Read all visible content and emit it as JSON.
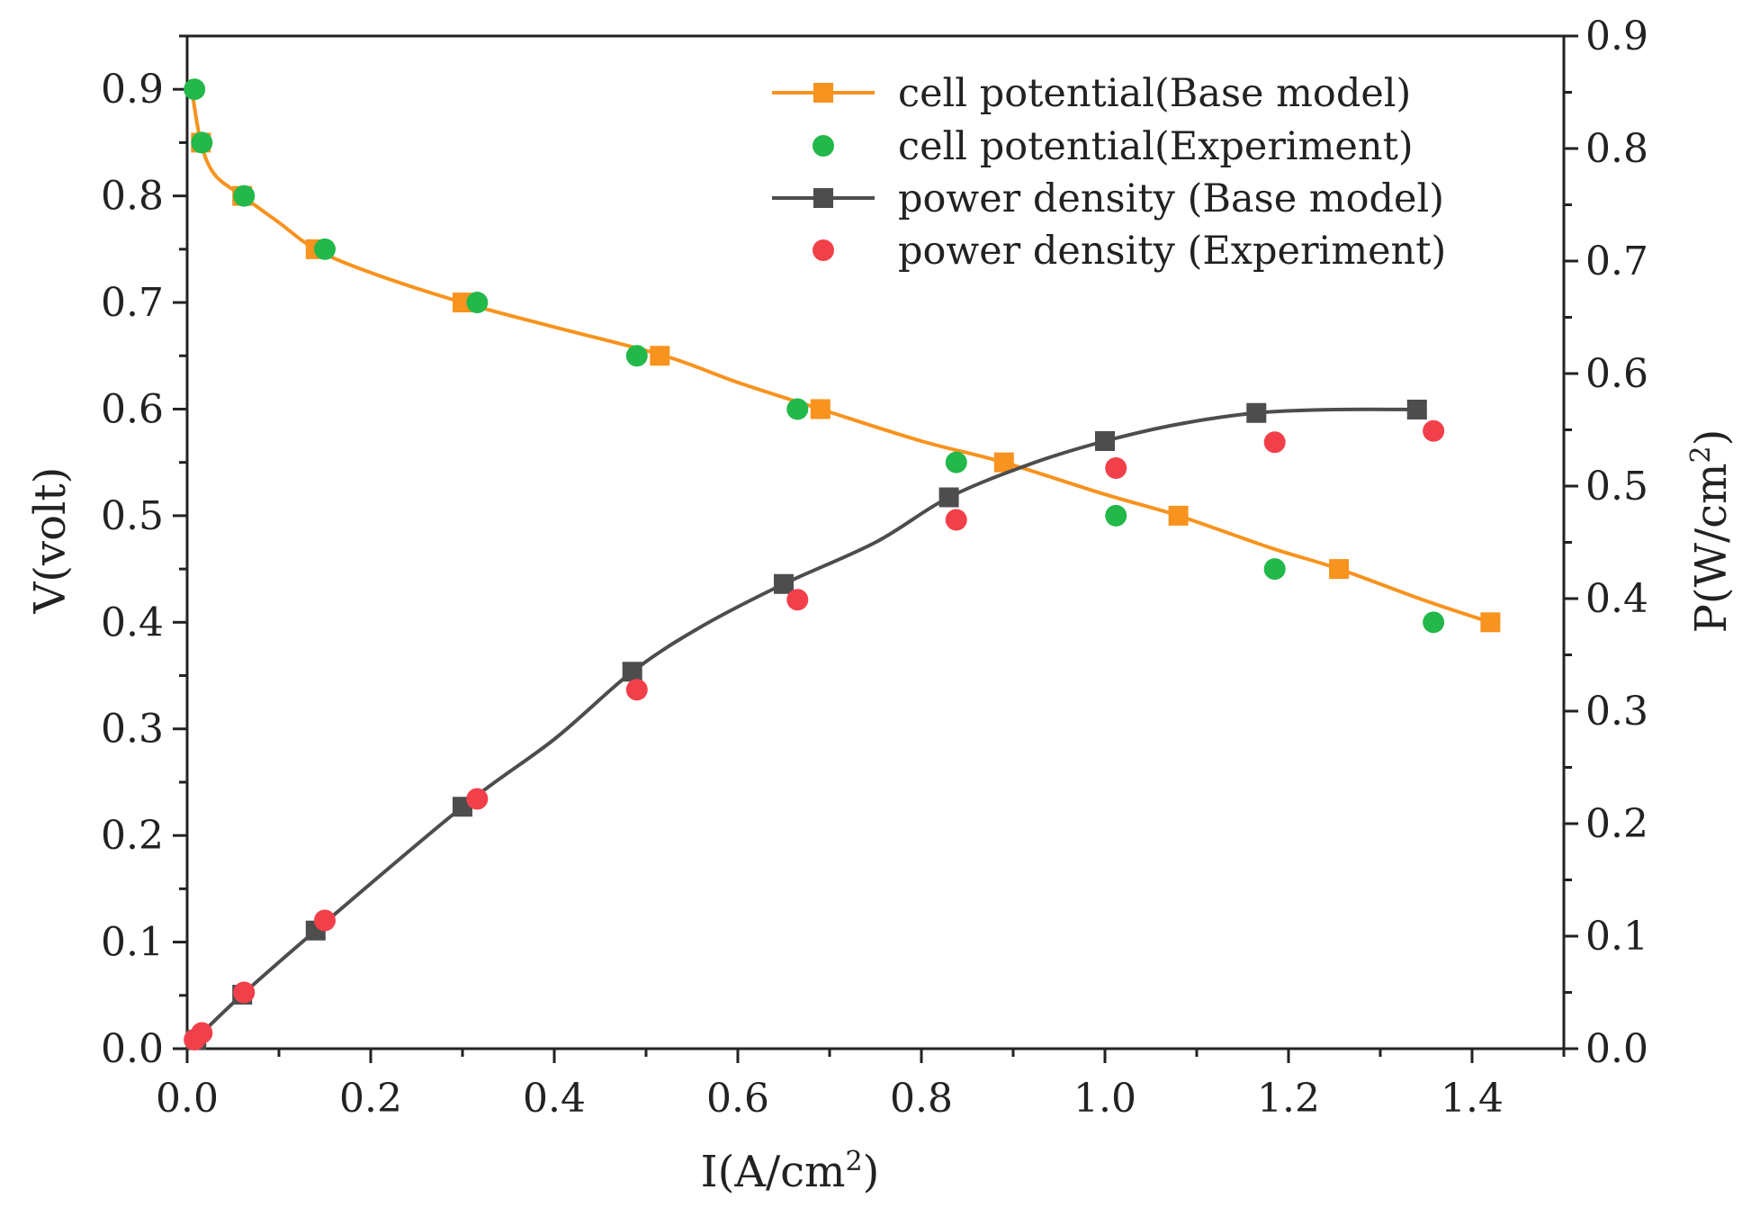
{
  "chart_data": {
    "type": "line",
    "title": "",
    "xlabel": "I(A/cm2)",
    "xlabel_main": "I(A/cm",
    "xlabel_sup": "2",
    "xlabel_tail": ")",
    "ylabel": "V(volt)",
    "y2label": "P(W/cm2)",
    "y2label_main": "P(W/cm",
    "y2label_sup": "2",
    "y2label_tail": ")",
    "xlim": [
      0.0,
      1.5
    ],
    "ylim": [
      0.0,
      0.95
    ],
    "y2lim": [
      0.0,
      0.9
    ],
    "xticks": [
      "0.0",
      "0.2",
      "0.4",
      "0.6",
      "0.8",
      "1.0",
      "1.2",
      "1.4"
    ],
    "yticks": [
      "0.0",
      "0.1",
      "0.2",
      "0.3",
      "0.4",
      "0.5",
      "0.6",
      "0.7",
      "0.8",
      "0.9"
    ],
    "y2ticks": [
      "0.0",
      "0.1",
      "0.2",
      "0.3",
      "0.4",
      "0.5",
      "0.6",
      "0.7",
      "0.8",
      "0.9"
    ],
    "legend_position": "top-right",
    "series": [
      {
        "name": "cell potential(Base model)",
        "axis": "left",
        "style": "line+square",
        "color": "#f7931e",
        "curve": [
          [
            0.005,
            0.9
          ],
          [
            0.015,
            0.85
          ],
          [
            0.03,
            0.82
          ],
          [
            0.06,
            0.8
          ],
          [
            0.1,
            0.775
          ],
          [
            0.14,
            0.75
          ],
          [
            0.2,
            0.728
          ],
          [
            0.3,
            0.7
          ],
          [
            0.4,
            0.677
          ],
          [
            0.52,
            0.65
          ],
          [
            0.6,
            0.625
          ],
          [
            0.69,
            0.6
          ],
          [
            0.8,
            0.57
          ],
          [
            0.89,
            0.55
          ],
          [
            1.0,
            0.52
          ],
          [
            1.08,
            0.5
          ],
          [
            1.18,
            0.47
          ],
          [
            1.255,
            0.45
          ],
          [
            1.35,
            0.42
          ],
          [
            1.42,
            0.4
          ]
        ],
        "x": [
          0.015,
          0.06,
          0.14,
          0.3,
          0.515,
          0.69,
          0.89,
          1.08,
          1.255,
          1.42
        ],
        "y": [
          0.85,
          0.8,
          0.75,
          0.7,
          0.65,
          0.6,
          0.55,
          0.5,
          0.45,
          0.4
        ]
      },
      {
        "name": "cell potential(Experiment)",
        "axis": "left",
        "style": "circle",
        "color": "#22b84a",
        "x": [
          0.008,
          0.016,
          0.062,
          0.15,
          0.316,
          0.49,
          0.665,
          0.838,
          1.012,
          1.185,
          1.358
        ],
        "y": [
          0.9,
          0.85,
          0.8,
          0.75,
          0.7,
          0.65,
          0.6,
          0.55,
          0.5,
          0.45,
          0.4
        ]
      },
      {
        "name": "power density (Base model)",
        "axis": "right",
        "style": "line+square",
        "color": "#4d4d4d",
        "curve": [
          [
            0.005,
            0.005
          ],
          [
            0.015,
            0.013
          ],
          [
            0.06,
            0.048
          ],
          [
            0.14,
            0.105
          ],
          [
            0.3,
            0.215
          ],
          [
            0.4,
            0.275
          ],
          [
            0.485,
            0.335
          ],
          [
            0.56,
            0.375
          ],
          [
            0.65,
            0.413
          ],
          [
            0.75,
            0.45
          ],
          [
            0.83,
            0.49
          ],
          [
            0.92,
            0.52
          ],
          [
            1.0,
            0.54
          ],
          [
            1.08,
            0.555
          ],
          [
            1.165,
            0.565
          ],
          [
            1.25,
            0.568
          ],
          [
            1.34,
            0.568
          ]
        ],
        "x": [
          0.01,
          0.06,
          0.14,
          0.3,
          0.485,
          0.65,
          0.83,
          1.0,
          1.165,
          1.34
        ],
        "y": [
          0.008,
          0.048,
          0.105,
          0.215,
          0.335,
          0.413,
          0.49,
          0.54,
          0.565,
          0.568
        ]
      },
      {
        "name": "power density (Experiment)",
        "axis": "right",
        "style": "circle",
        "color": "#f2404b",
        "x": [
          0.008,
          0.016,
          0.062,
          0.15,
          0.316,
          0.49,
          0.665,
          0.838,
          1.012,
          1.185,
          1.358
        ],
        "y": [
          0.008,
          0.014,
          0.05,
          0.114,
          0.222,
          0.319,
          0.399,
          0.47,
          0.516,
          0.539,
          0.549
        ]
      }
    ]
  }
}
